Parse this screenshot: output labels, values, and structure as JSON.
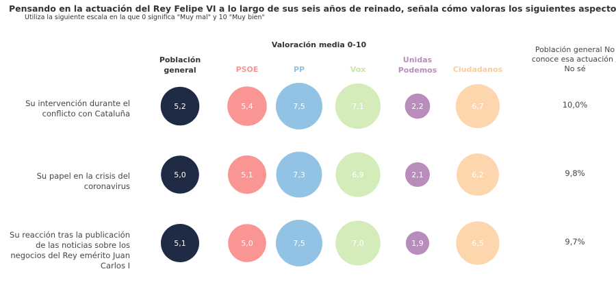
{
  "header": {
    "title": "Pensando en la actuación del Rey Felipe VI a lo largo de sus seis años de reinado, señala cómo valoras los siguientes aspectos",
    "subtitle": "Utiliza la siguiente escala en la que 0 significa \"Muy mal\" y 10 \"Muy bien\"",
    "section_title": "Valoración media 0-10",
    "right_header": "Población general No conoce esa actuación / No sé"
  },
  "chart_data": {
    "type": "bubble-table",
    "title": "Pensando en la actuación del Rey Felipe VI a lo largo de sus seis años de reinado, señala cómo valoras los siguientes aspectos",
    "subtitle": "Utiliza la siguiente escala en la que 0 significa \"Muy mal\" y 10 \"Muy bien\"",
    "scale": [
      0,
      10
    ],
    "columns": [
      {
        "name": "Población general",
        "color": "#1f2a44",
        "label_color": "#333333"
      },
      {
        "name": "PSOE",
        "color": "#f99593",
        "label_color": "#f99593"
      },
      {
        "name": "PP",
        "color": "#92c3e4",
        "label_color": "#92c3e4"
      },
      {
        "name": "Vox",
        "color": "#d3ecb9",
        "label_color": "#c6e6a8"
      },
      {
        "name": "Unidas Podemos",
        "color": "#b98dbb",
        "label_color": "#b98dbb"
      },
      {
        "name": "Ciudadanos",
        "color": "#fdd6ad",
        "label_color": "#fbcb9b"
      }
    ],
    "rows": [
      {
        "label": "Su intervención durante el conflicto con Cataluña",
        "values": [
          "5,2",
          "5,4",
          "7,5",
          "7,1",
          "2,2",
          "6,7"
        ],
        "no_sabe": "10,0%"
      },
      {
        "label": "Su papel en la crisis del coronavirus",
        "values": [
          "5,0",
          "5,1",
          "7,3",
          "6,9",
          "2,1",
          "6,2"
        ],
        "no_sabe": "9,8%"
      },
      {
        "label": "Su reacción tras la publicación de las noticias sobre los negocios del Rey emérito Juan Carlos I",
        "values": [
          "5,1",
          "5,0",
          "7,5",
          "7,0",
          "1,9",
          "6,5"
        ],
        "no_sabe": "9,7%"
      }
    ]
  }
}
